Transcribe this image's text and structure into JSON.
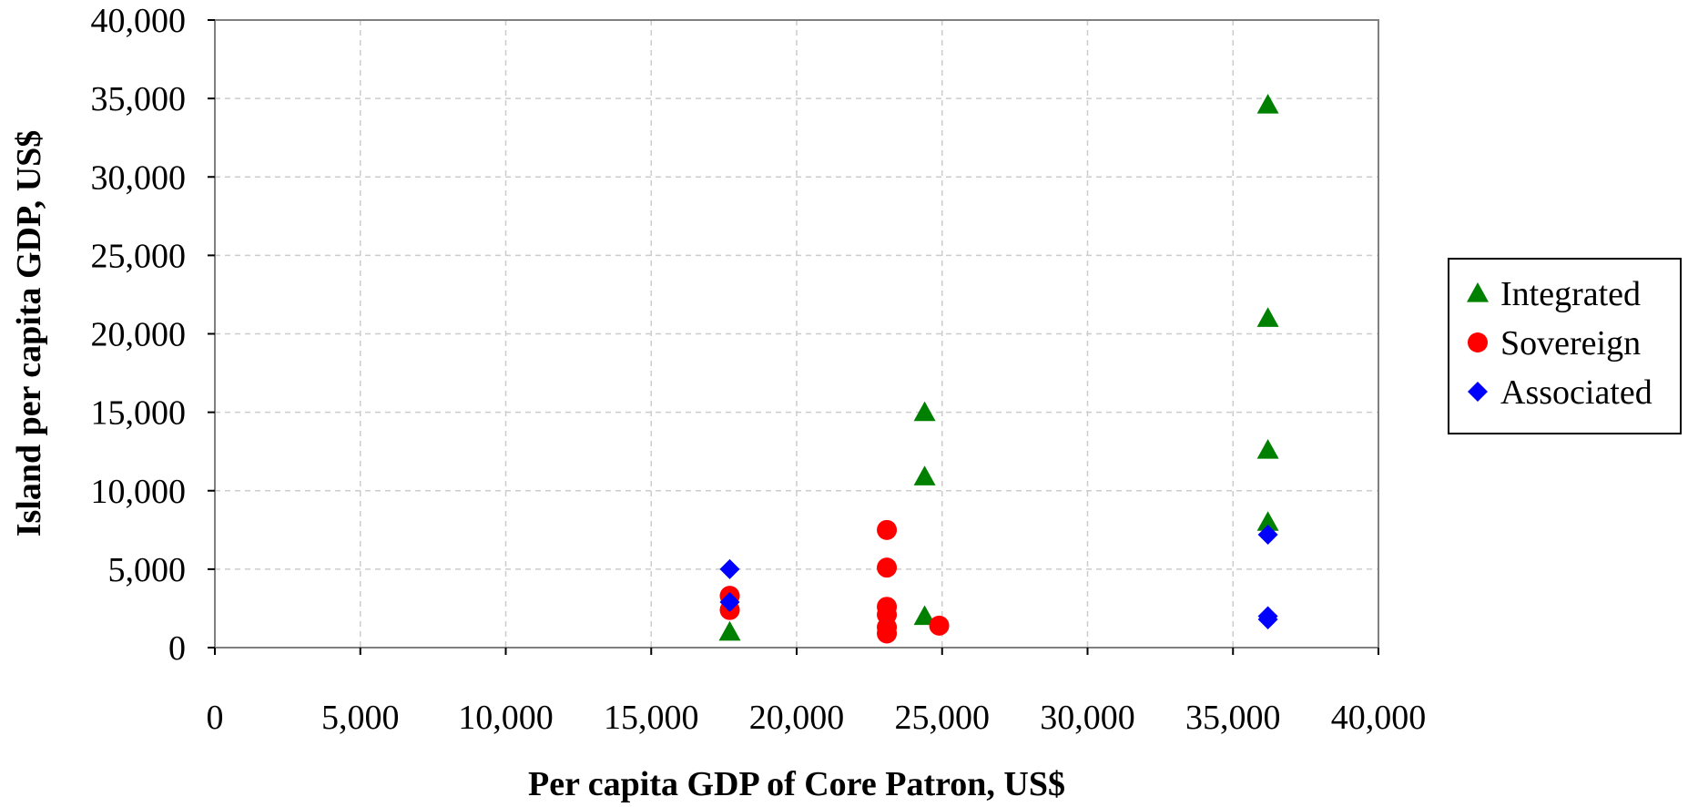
{
  "chart_data": {
    "type": "scatter",
    "title": "",
    "xlabel": "Per capita GDP of Core Patron, US$",
    "ylabel": "Island per capita GDP, US$",
    "xlim": [
      0,
      40000
    ],
    "ylim": [
      0,
      40000
    ],
    "xticks": [
      0,
      5000,
      10000,
      15000,
      20000,
      25000,
      30000,
      35000,
      40000
    ],
    "yticks": [
      0,
      5000,
      10000,
      15000,
      20000,
      25000,
      30000,
      35000,
      40000
    ],
    "grid": true,
    "legend_position": "right",
    "series": [
      {
        "name": "Integrated",
        "marker": "triangle",
        "color": "#008000",
        "points": [
          {
            "x": 17700,
            "y": 1000
          },
          {
            "x": 24400,
            "y": 2000
          },
          {
            "x": 24400,
            "y": 10900
          },
          {
            "x": 24400,
            "y": 15000
          },
          {
            "x": 36200,
            "y": 8000
          },
          {
            "x": 36200,
            "y": 12600
          },
          {
            "x": 36200,
            "y": 21000
          },
          {
            "x": 36200,
            "y": 34600
          }
        ]
      },
      {
        "name": "Sovereign",
        "marker": "circle",
        "color": "#ff0000",
        "points": [
          {
            "x": 17700,
            "y": 2400
          },
          {
            "x": 17700,
            "y": 3300
          },
          {
            "x": 23100,
            "y": 900
          },
          {
            "x": 23100,
            "y": 1300
          },
          {
            "x": 23100,
            "y": 2100
          },
          {
            "x": 23100,
            "y": 2600
          },
          {
            "x": 23100,
            "y": 5100
          },
          {
            "x": 23100,
            "y": 7500
          },
          {
            "x": 24900,
            "y": 1400
          }
        ]
      },
      {
        "name": "Associated",
        "marker": "diamond",
        "color": "#0000ff",
        "points": [
          {
            "x": 17700,
            "y": 2900
          },
          {
            "x": 17700,
            "y": 5000
          },
          {
            "x": 36200,
            "y": 1800
          },
          {
            "x": 36200,
            "y": 2000
          },
          {
            "x": 36200,
            "y": 7200
          }
        ]
      }
    ]
  }
}
